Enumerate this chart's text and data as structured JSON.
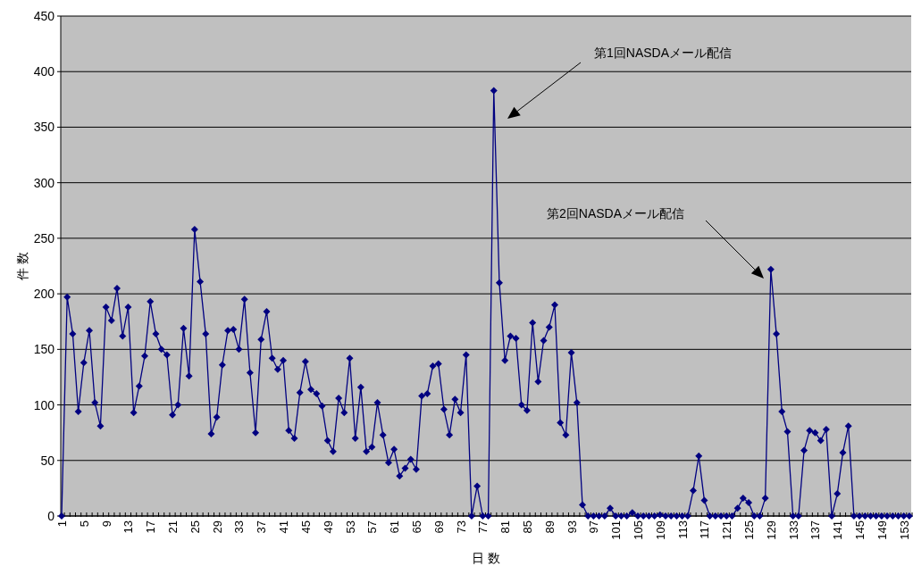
{
  "chart_data": {
    "type": "line",
    "xlabel": "日 数",
    "ylabel": "件 数",
    "categories": [
      "1",
      null,
      null,
      null,
      "5",
      null,
      null,
      null,
      "9",
      null,
      null,
      null,
      "13",
      null,
      null,
      null,
      "17",
      null,
      null,
      null,
      "21",
      null,
      null,
      null,
      "25",
      null,
      null,
      null,
      "29",
      null,
      null,
      null,
      "33",
      null,
      null,
      null,
      "37",
      null,
      null,
      null,
      "41",
      null,
      null,
      null,
      "45",
      null,
      null,
      null,
      "49",
      null,
      null,
      null,
      "53",
      null,
      null,
      null,
      "57",
      null,
      null,
      null,
      "61",
      null,
      null,
      null,
      "65",
      null,
      null,
      null,
      "69",
      null,
      null,
      null,
      "73",
      null,
      null,
      null,
      "77",
      null,
      null,
      null,
      "81",
      null,
      null,
      null,
      "85",
      null,
      null,
      null,
      "89",
      null,
      null,
      null,
      "93",
      null,
      null,
      null,
      "97",
      null,
      null,
      null,
      "101",
      null,
      null,
      null,
      "105",
      null,
      null,
      null,
      "109",
      null,
      null,
      null,
      "113",
      null,
      null,
      null,
      "117",
      null,
      null,
      null,
      "121",
      null,
      null,
      null,
      "125",
      null,
      null,
      null,
      "129",
      null,
      null,
      null,
      "133",
      null,
      null,
      null,
      "137",
      null,
      null,
      null,
      "141",
      null,
      null,
      null,
      "145",
      null,
      null,
      null,
      "149",
      null,
      null,
      null,
      "153",
      null
    ],
    "series": [
      {
        "color": "#000080",
        "values": [
          0,
          197,
          164,
          94,
          138,
          167,
          102,
          81,
          188,
          176,
          205,
          162,
          188,
          93,
          117,
          144,
          193,
          164,
          150,
          145,
          91,
          100,
          169,
          126,
          258,
          211,
          164,
          74,
          89,
          136,
          167,
          168,
          150,
          195,
          129,
          75,
          159,
          184,
          142,
          132,
          140,
          77,
          70,
          111,
          139,
          114,
          110,
          99,
          68,
          58,
          106,
          93,
          142,
          70,
          116,
          58,
          62,
          102,
          73,
          48,
          60,
          36,
          43,
          51,
          42,
          108,
          110,
          135,
          137,
          96,
          73,
          105,
          93,
          145,
          0,
          27,
          0,
          0,
          383,
          210,
          140,
          162,
          160,
          100,
          95,
          174,
          121,
          158,
          170,
          190,
          84,
          73,
          147,
          102,
          10,
          0,
          0,
          0,
          0,
          7,
          0,
          0,
          0,
          3,
          0,
          0,
          0,
          0,
          1,
          0,
          0,
          0,
          0,
          0,
          23,
          54,
          14,
          0,
          0,
          0,
          0,
          0,
          7,
          16,
          12,
          0,
          0,
          16,
          222,
          164,
          94,
          76,
          0,
          0,
          59,
          77,
          75,
          68,
          78,
          0,
          20,
          57,
          81,
          0,
          0,
          0,
          0,
          0,
          0,
          0,
          0,
          0,
          0,
          0
        ]
      }
    ],
    "ylim": [
      0,
      450
    ],
    "yticks": [
      0,
      50,
      100,
      150,
      200,
      250,
      300,
      350,
      400,
      450
    ],
    "grid": "y",
    "marker": "diamond",
    "line_style": "solid",
    "annotations": [
      "第1回NASDAメール配信",
      "第2回NASDAメール配信"
    ]
  }
}
